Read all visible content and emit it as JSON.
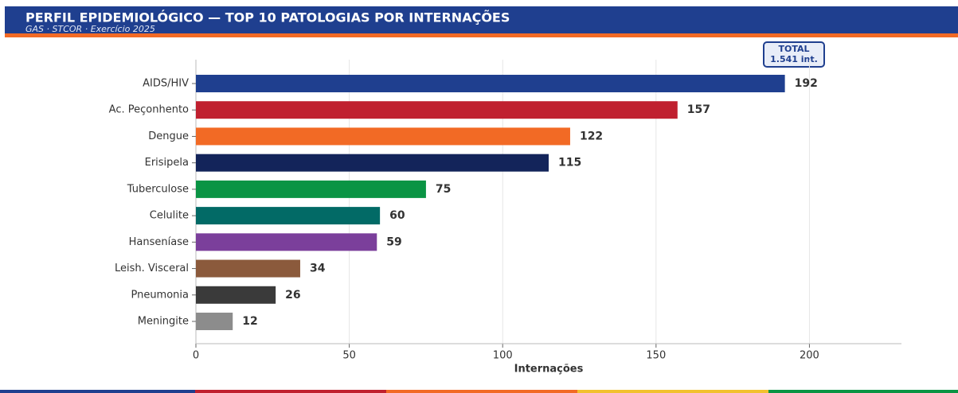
{
  "chart_data": {
    "type": "bar",
    "orientation": "horizontal",
    "title": "PERFIL EPIDEMIOLÓGICO — TOP 10 PATOLOGIAS POR INTERNAÇÕES",
    "subtitle": "GAS · STCOR · Exercício 2025",
    "annotation": [
      "TOTAL",
      "1.541 int."
    ],
    "x_label": "Internações",
    "categories": [
      "AIDS/HIV",
      "Ac. Peçonhento",
      "Dengue",
      "Erisipela",
      "Tuberculose",
      "Celulite",
      "Hanseníase",
      "Leish. Visceral",
      "Pneumonia",
      "Meningite"
    ],
    "values": [
      192,
      157,
      122,
      115,
      75,
      60,
      59,
      34,
      26,
      12
    ],
    "colors": [
      "#1f3f8f",
      "#c0202f",
      "#f26a25",
      "#13245a",
      "#0a9444",
      "#026a66",
      "#7b3f9b",
      "#8b5a3c",
      "#3a3a3a",
      "#8c8c8c"
    ],
    "xlim": [
      0,
      230
    ],
    "xticks": [
      0,
      50,
      100,
      150,
      200
    ],
    "grid": true
  }
}
